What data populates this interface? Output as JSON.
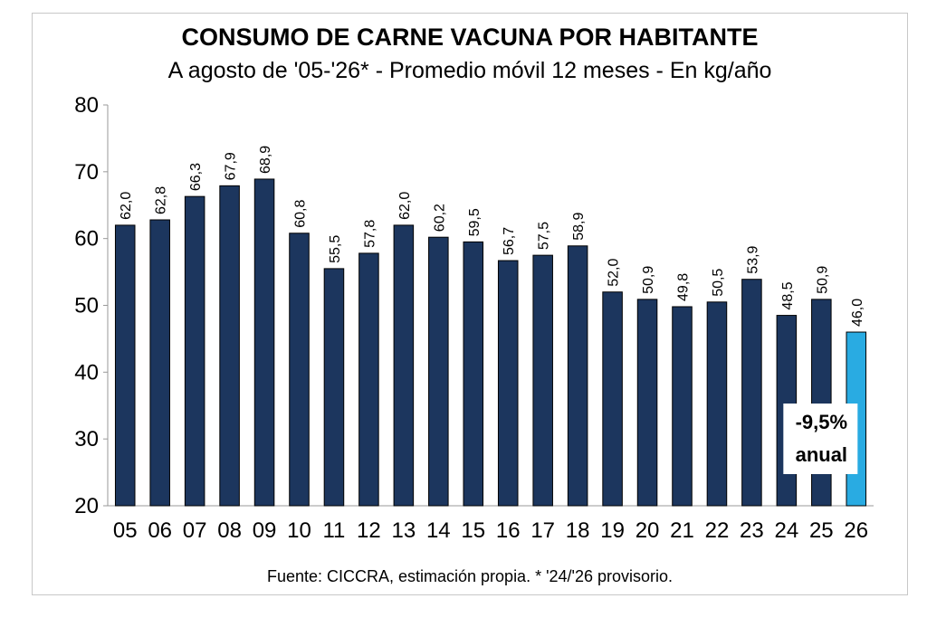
{
  "chart_data": {
    "type": "bar",
    "title": "CONSUMO DE CARNE VACUNA POR HABITANTE",
    "subtitle": "A agosto de '05-'26* - Promedio móvil 12 meses -  En kg/año",
    "xlabel": "",
    "ylabel": "",
    "ylim": [
      20,
      80
    ],
    "yticks": [
      20,
      30,
      40,
      50,
      60,
      70,
      80
    ],
    "grid": false,
    "categories": [
      "05",
      "06",
      "07",
      "08",
      "09",
      "10",
      "11",
      "12",
      "13",
      "14",
      "15",
      "16",
      "17",
      "18",
      "19",
      "20",
      "21",
      "22",
      "23",
      "24",
      "25",
      "26"
    ],
    "values": [
      62.0,
      62.8,
      66.3,
      67.9,
      68.9,
      60.8,
      55.5,
      57.8,
      62.0,
      60.2,
      59.5,
      56.7,
      57.5,
      58.9,
      52.0,
      50.9,
      49.8,
      50.5,
      53.9,
      48.5,
      50.9,
      46.0
    ],
    "data_labels": [
      "62,0",
      "62,8",
      "66,3",
      "67,9",
      "68,9",
      "60,8",
      "55,5",
      "57,8",
      "62,0",
      "60,2",
      "59,5",
      "56,7",
      "57,5",
      "58,9",
      "52,0",
      "50,9",
      "49,8",
      "50,5",
      "53,9",
      "48,5",
      "50,9",
      "46,0"
    ],
    "colors": {
      "default": "#1c365e",
      "highlight": "#29abe2"
    },
    "highlight_index": 21,
    "annotation": {
      "line1": "-9,5%",
      "line2": "anual"
    },
    "source": "Fuente: CICCRA, estimación propia. * '24/'26 provisorio."
  }
}
